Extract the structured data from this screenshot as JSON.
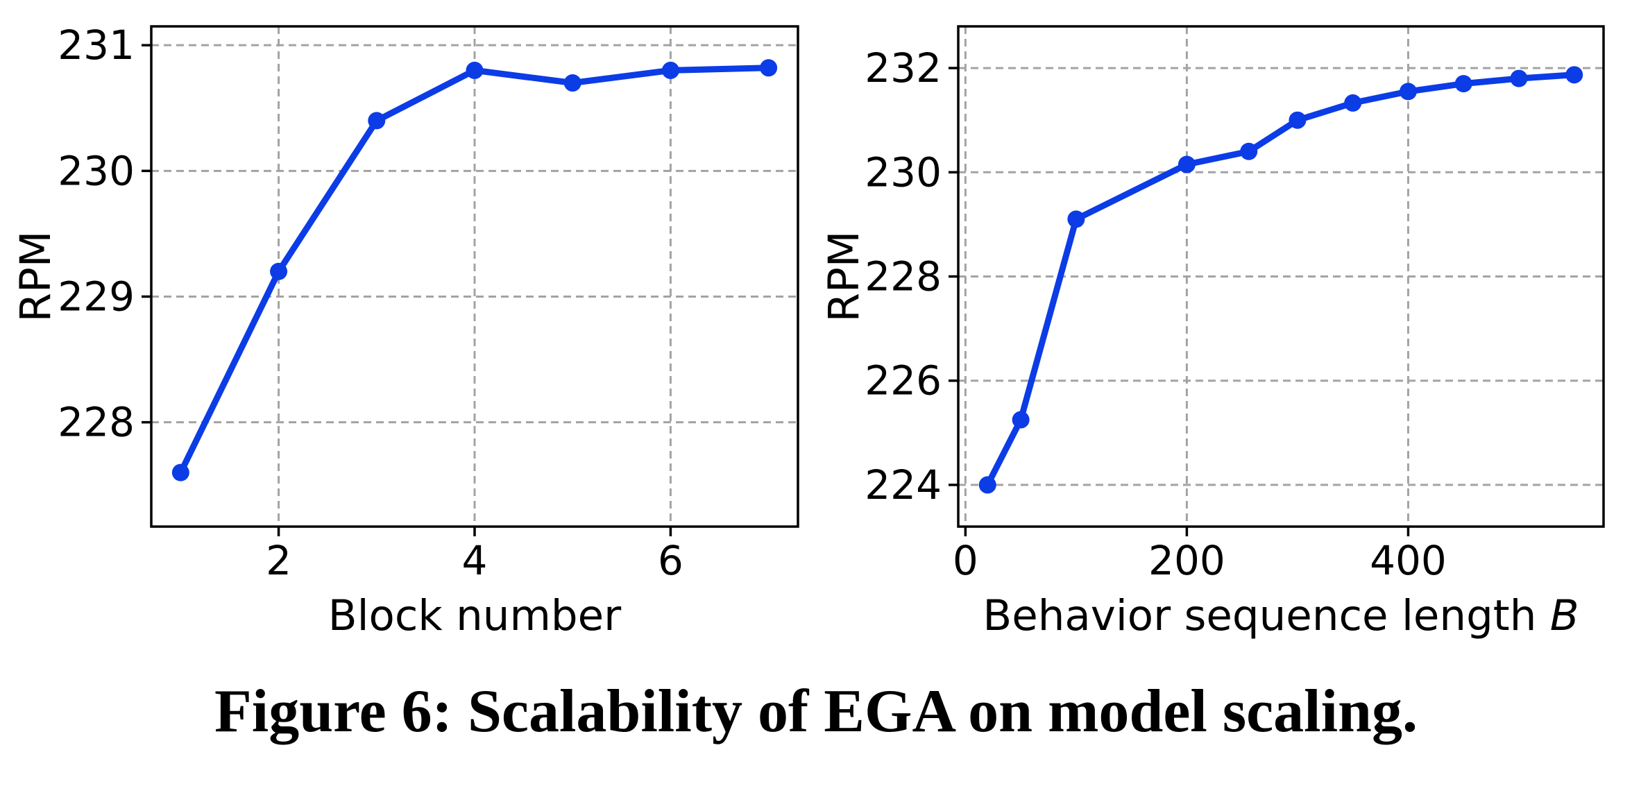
{
  "figure": {
    "caption": "Figure 6: Scalability of EGA on model scaling."
  },
  "colors": {
    "line": "#0b3ce6",
    "marker": "#0b3ce6",
    "grid": "#a3a3a3",
    "axis": "#000000",
    "text": "#000000",
    "background": "#ffffff"
  },
  "chart_data": [
    {
      "type": "line",
      "title": "",
      "xlabel": "Block number",
      "xlabel_italic_suffix": "",
      "ylabel": "RPM",
      "x": [
        1,
        2,
        3,
        4,
        5,
        6,
        7
      ],
      "y": [
        227.6,
        229.2,
        230.4,
        230.8,
        230.7,
        230.8,
        230.82
      ],
      "xticks": [
        2,
        4,
        6
      ],
      "yticks": [
        228,
        229,
        230,
        231
      ],
      "xlim": [
        0.7,
        7.3
      ],
      "ylim": [
        227.17,
        231.15
      ],
      "grid": true,
      "grid_style": "dashed",
      "legend": null,
      "marker": "circle"
    },
    {
      "type": "line",
      "title": "",
      "xlabel": "Behavior sequence length ",
      "xlabel_italic_suffix": "B",
      "ylabel": "RPM",
      "x": [
        20,
        50,
        100,
        200,
        256,
        300,
        350,
        400,
        450,
        500,
        550
      ],
      "y": [
        224.0,
        225.25,
        229.1,
        230.15,
        230.4,
        231.0,
        231.33,
        231.55,
        231.7,
        231.8,
        231.87
      ],
      "xticks": [
        0,
        200,
        400
      ],
      "yticks": [
        224,
        226,
        228,
        230,
        232
      ],
      "xlim": [
        -6.5,
        576.5
      ],
      "ylim": [
        223.2,
        232.8
      ],
      "grid": true,
      "grid_style": "dashed",
      "legend": null,
      "marker": "circle"
    }
  ]
}
